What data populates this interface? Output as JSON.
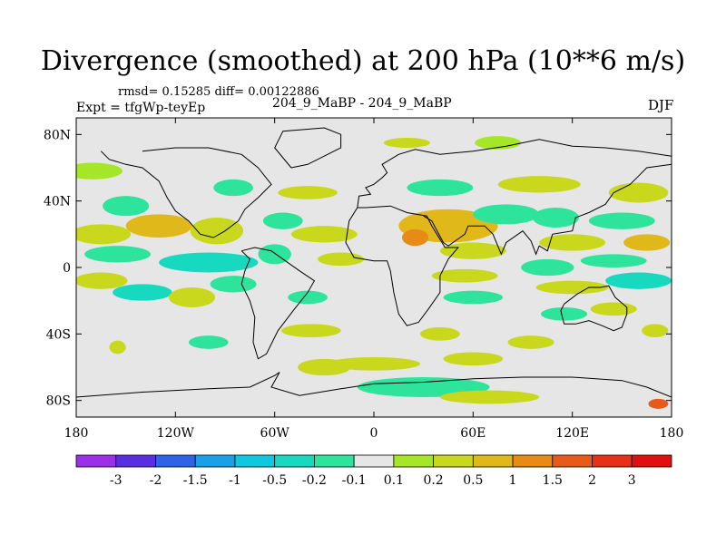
{
  "chart_data": {
    "type": "heatmap",
    "title": "Divergence (smoothed) at 200 hPa (10**6 m/s)",
    "stats": "rmsd= 0.15285 diff= 0.00122886",
    "experiment_label": "Expt = tfgWp-teyEp",
    "center_label": "204_9_MaBP - 204_9_MaBP",
    "season": "DJF",
    "x_ticks": [
      "180",
      "120W",
      "60W",
      "0",
      "60E",
      "120E",
      "180"
    ],
    "x_values": [
      -180,
      -120,
      -60,
      0,
      60,
      120,
      180
    ],
    "y_ticks": [
      "80N",
      "40N",
      "0",
      "40S",
      "80S"
    ],
    "y_values": [
      80,
      40,
      0,
      -40,
      -80
    ],
    "xlim": [
      -180,
      180
    ],
    "ylim": [
      -90,
      90
    ],
    "colorbar": {
      "labels": [
        "-3",
        "-2",
        "-1.5",
        "-1",
        "-0.5",
        "-0.2",
        "-0.1",
        "0.1",
        "0.2",
        "0.5",
        "1",
        "1.5",
        "2",
        "3"
      ],
      "colors": [
        "#9b30e6",
        "#5a2ee0",
        "#2f62e6",
        "#1a9fe8",
        "#10c7e0",
        "#16d9c0",
        "#2ee39c",
        "#e6e6e6",
        "#a6e628",
        "#c9d81c",
        "#e0b81a",
        "#e88a18",
        "#e85a1a",
        "#e63018",
        "#e01010"
      ]
    },
    "background_color": "#e6e6e6",
    "features": [
      {
        "lon": -170,
        "lat": 58,
        "rlon": 18,
        "rlat": 5,
        "v": "0.1"
      },
      {
        "lon": -150,
        "lat": 37,
        "rlon": 14,
        "rlat": 6,
        "v": "-0.2"
      },
      {
        "lon": -165,
        "lat": 20,
        "rlon": 18,
        "rlat": 6,
        "v": "0.2"
      },
      {
        "lon": -130,
        "lat": 25,
        "rlon": 20,
        "rlat": 7,
        "v": "0.5"
      },
      {
        "lon": -95,
        "lat": 22,
        "rlon": 16,
        "rlat": 8,
        "v": "0.2"
      },
      {
        "lon": -155,
        "lat": 8,
        "rlon": 20,
        "rlat": 5,
        "v": "-0.2"
      },
      {
        "lon": -100,
        "lat": 3,
        "rlon": 30,
        "rlat": 6,
        "v": "-0.5"
      },
      {
        "lon": -165,
        "lat": -8,
        "rlon": 16,
        "rlat": 5,
        "v": "0.2"
      },
      {
        "lon": -140,
        "lat": -15,
        "rlon": 18,
        "rlat": 5,
        "v": "-0.5"
      },
      {
        "lon": -110,
        "lat": -18,
        "rlon": 14,
        "rlat": 6,
        "v": "0.2"
      },
      {
        "lon": -85,
        "lat": -10,
        "rlon": 14,
        "rlat": 5,
        "v": "-0.2"
      },
      {
        "lon": -100,
        "lat": -45,
        "rlon": 12,
        "rlat": 4,
        "v": "-0.2"
      },
      {
        "lon": -85,
        "lat": -62,
        "rlon": 12,
        "rlat": 4,
        "v": "-0.1"
      },
      {
        "lon": -155,
        "lat": -48,
        "rlon": 5,
        "rlat": 4,
        "v": "0.2"
      },
      {
        "lon": -120,
        "lat": -85,
        "rlon": 10,
        "rlat": 3,
        "v": "-0.1"
      },
      {
        "lon": -85,
        "lat": 48,
        "rlon": 12,
        "rlat": 5,
        "v": "-0.2"
      },
      {
        "lon": -40,
        "lat": 45,
        "rlon": 18,
        "rlat": 4,
        "v": "0.2"
      },
      {
        "lon": -55,
        "lat": 28,
        "rlon": 12,
        "rlat": 5,
        "v": "-0.2"
      },
      {
        "lon": -30,
        "lat": 20,
        "rlon": 20,
        "rlat": 5,
        "v": "0.2"
      },
      {
        "lon": -60,
        "lat": 8,
        "rlon": 10,
        "rlat": 6,
        "v": "-0.2"
      },
      {
        "lon": -20,
        "lat": 5,
        "rlon": 14,
        "rlat": 4,
        "v": "0.2"
      },
      {
        "lon": -40,
        "lat": -18,
        "rlon": 12,
        "rlat": 4,
        "v": "-0.2"
      },
      {
        "lon": -38,
        "lat": -38,
        "rlon": 18,
        "rlat": 4,
        "v": "0.2"
      },
      {
        "lon": -15,
        "lat": -33,
        "rlon": 10,
        "rlat": 4,
        "v": "-0.1"
      },
      {
        "lon": -30,
        "lat": -60,
        "rlon": 16,
        "rlat": 5,
        "v": "0.2"
      },
      {
        "lon": -5,
        "lat": 72,
        "rlon": 8,
        "rlat": 4,
        "v": "-0.1"
      },
      {
        "lon": 20,
        "lat": 75,
        "rlon": 14,
        "rlat": 3,
        "v": "0.2"
      },
      {
        "lon": 40,
        "lat": 48,
        "rlon": 20,
        "rlat": 5,
        "v": "-0.2"
      },
      {
        "lon": 45,
        "lat": 25,
        "rlon": 30,
        "rlat": 10,
        "v": "0.5"
      },
      {
        "lon": 25,
        "lat": 18,
        "rlon": 8,
        "rlat": 5,
        "v": "1"
      },
      {
        "lon": 60,
        "lat": 10,
        "rlon": 20,
        "rlat": 5,
        "v": "0.2"
      },
      {
        "lon": 80,
        "lat": 32,
        "rlon": 20,
        "rlat": 6,
        "v": "-0.2"
      },
      {
        "lon": 55,
        "lat": -5,
        "rlon": 20,
        "rlat": 4,
        "v": "0.2"
      },
      {
        "lon": 60,
        "lat": -18,
        "rlon": 18,
        "rlat": 4,
        "v": "-0.2"
      },
      {
        "lon": 40,
        "lat": -40,
        "rlon": 12,
        "rlat": 4,
        "v": "0.2"
      },
      {
        "lon": 60,
        "lat": -55,
        "rlon": 18,
        "rlat": 4,
        "v": "0.2"
      },
      {
        "lon": 0,
        "lat": -58,
        "rlon": 28,
        "rlat": 4,
        "v": "0.2"
      },
      {
        "lon": 30,
        "lat": -72,
        "rlon": 40,
        "rlat": 6,
        "v": "-0.2"
      },
      {
        "lon": 70,
        "lat": -78,
        "rlon": 30,
        "rlat": 4,
        "v": "0.2"
      },
      {
        "lon": 75,
        "lat": 75,
        "rlon": 14,
        "rlat": 4,
        "v": "0.1"
      },
      {
        "lon": 100,
        "lat": 50,
        "rlon": 25,
        "rlat": 5,
        "v": "0.2"
      },
      {
        "lon": 110,
        "lat": 30,
        "rlon": 14,
        "rlat": 6,
        "v": "-0.2"
      },
      {
        "lon": 120,
        "lat": 15,
        "rlon": 20,
        "rlat": 5,
        "v": "0.2"
      },
      {
        "lon": 105,
        "lat": 0,
        "rlon": 16,
        "rlat": 5,
        "v": "-0.2"
      },
      {
        "lon": 120,
        "lat": -12,
        "rlon": 22,
        "rlat": 4,
        "v": "0.2"
      },
      {
        "lon": 115,
        "lat": -28,
        "rlon": 14,
        "rlat": 4,
        "v": "-0.2"
      },
      {
        "lon": 95,
        "lat": -45,
        "rlon": 14,
        "rlat": 4,
        "v": "0.2"
      },
      {
        "lon": 125,
        "lat": -62,
        "rlon": 16,
        "rlat": 4,
        "v": "-0.1"
      },
      {
        "lon": 160,
        "lat": 45,
        "rlon": 18,
        "rlat": 6,
        "v": "0.2"
      },
      {
        "lon": 150,
        "lat": 28,
        "rlon": 20,
        "rlat": 5,
        "v": "-0.2"
      },
      {
        "lon": 165,
        "lat": 15,
        "rlon": 14,
        "rlat": 5,
        "v": "0.5"
      },
      {
        "lon": 145,
        "lat": 4,
        "rlon": 20,
        "rlat": 4,
        "v": "-0.2"
      },
      {
        "lon": 160,
        "lat": -8,
        "rlon": 20,
        "rlat": 5,
        "v": "-0.5"
      },
      {
        "lon": 145,
        "lat": -25,
        "rlon": 14,
        "rlat": 4,
        "v": "0.2"
      },
      {
        "lon": 170,
        "lat": -38,
        "rlon": 8,
        "rlat": 4,
        "v": "0.2"
      },
      {
        "lon": 172,
        "lat": -82,
        "rlon": 6,
        "rlat": 3,
        "v": "1.5"
      }
    ]
  }
}
